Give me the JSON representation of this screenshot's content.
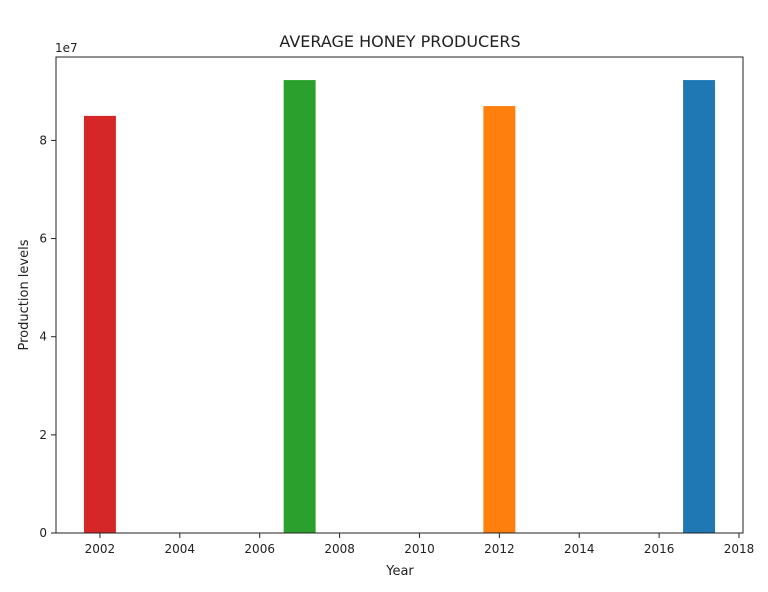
{
  "chart_data": {
    "type": "bar",
    "title": "AVERAGE HONEY PRODUCERS",
    "xlabel": "Year",
    "ylabel": "Production levels",
    "y_offset_label": "1e7",
    "xlim": [
      2000.9,
      2018.1
    ],
    "ylim": [
      0,
      97000000
    ],
    "x_ticks": [
      2002,
      2004,
      2006,
      2008,
      2010,
      2012,
      2014,
      2016,
      2018
    ],
    "y_ticks": [
      {
        "value": 0,
        "label": "0"
      },
      {
        "value": 20000000,
        "label": "2"
      },
      {
        "value": 40000000,
        "label": "4"
      },
      {
        "value": 60000000,
        "label": "6"
      },
      {
        "value": 80000000,
        "label": "8"
      }
    ],
    "bar_width": 0.8,
    "grid": false,
    "bars": [
      {
        "x": 2002,
        "value": 85000000,
        "color": "#d62728"
      },
      {
        "x": 2007,
        "value": 92300000,
        "color": "#2ca02c"
      },
      {
        "x": 2012,
        "value": 87000000,
        "color": "#ff7f0e"
      },
      {
        "x": 2017,
        "value": 92300000,
        "color": "#1f77b4"
      }
    ]
  }
}
